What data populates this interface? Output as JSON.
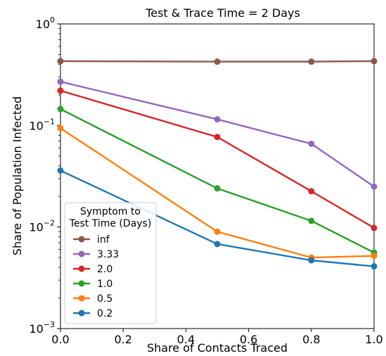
{
  "chart_data": {
    "type": "line",
    "title": "Test & Trace Time = 2 Days",
    "xlabel": "Share of Contacts Traced",
    "ylabel": "Share of Population Infected",
    "x": [
      0.0,
      0.5,
      0.8,
      1.0
    ],
    "xlim": [
      0.0,
      1.0
    ],
    "ylim": [
      0.001,
      1
    ],
    "yscale": "log",
    "grid": false,
    "x_ticks": [
      "0.0",
      "0.2",
      "0.4",
      "0.6",
      "0.8",
      "1.0"
    ],
    "y_ticks": [
      {
        "base": "10",
        "exp": "0"
      },
      {
        "base": "10",
        "exp": "−1"
      },
      {
        "base": "10",
        "exp": "−2"
      },
      {
        "base": "10",
        "exp": "−3"
      }
    ],
    "legend": {
      "title_line1": "Symptom to",
      "title_line2": "Test Time (Days)",
      "position": "lower-left"
    },
    "series": [
      {
        "name": "inf",
        "color": "#8c564b",
        "values": [
          0.43,
          0.425,
          0.425,
          0.43
        ]
      },
      {
        "name": "3.33",
        "color": "#9467bd",
        "values": [
          0.27,
          0.115,
          0.066,
          0.025
        ]
      },
      {
        "name": "2.0",
        "color": "#d62728",
        "values": [
          0.22,
          0.077,
          0.0225,
          0.0098
        ]
      },
      {
        "name": "1.0",
        "color": "#2ca02c",
        "values": [
          0.145,
          0.024,
          0.0115,
          0.0056
        ]
      },
      {
        "name": "0.5",
        "color": "#ff7f0e",
        "values": [
          0.094,
          0.009,
          0.005,
          0.0052
        ]
      },
      {
        "name": "0.2",
        "color": "#1f77b4",
        "values": [
          0.036,
          0.0068,
          0.0047,
          0.0041
        ]
      }
    ]
  }
}
